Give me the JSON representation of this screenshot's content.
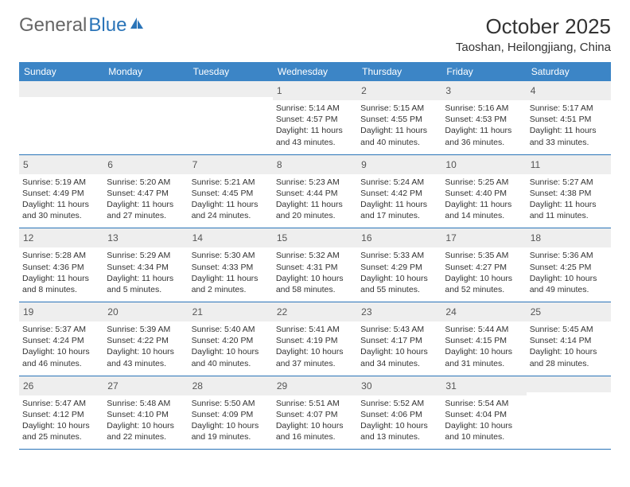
{
  "logo": {
    "part1": "General",
    "part2": "Blue"
  },
  "title": "October 2025",
  "location": "Taoshan, Heilongjiang, China",
  "colors": {
    "header_bg": "#3c85c6",
    "header_text": "#ffffff",
    "daynum_bg": "#eeeeee",
    "border": "#2a74b8",
    "logo_gray": "#666666",
    "logo_blue": "#2a74b8"
  },
  "day_names": [
    "Sunday",
    "Monday",
    "Tuesday",
    "Wednesday",
    "Thursday",
    "Friday",
    "Saturday"
  ],
  "weeks": [
    [
      null,
      null,
      null,
      {
        "n": "1",
        "sr": "Sunrise: 5:14 AM",
        "ss": "Sunset: 4:57 PM",
        "dl": "Daylight: 11 hours and 43 minutes."
      },
      {
        "n": "2",
        "sr": "Sunrise: 5:15 AM",
        "ss": "Sunset: 4:55 PM",
        "dl": "Daylight: 11 hours and 40 minutes."
      },
      {
        "n": "3",
        "sr": "Sunrise: 5:16 AM",
        "ss": "Sunset: 4:53 PM",
        "dl": "Daylight: 11 hours and 36 minutes."
      },
      {
        "n": "4",
        "sr": "Sunrise: 5:17 AM",
        "ss": "Sunset: 4:51 PM",
        "dl": "Daylight: 11 hours and 33 minutes."
      }
    ],
    [
      {
        "n": "5",
        "sr": "Sunrise: 5:19 AM",
        "ss": "Sunset: 4:49 PM",
        "dl": "Daylight: 11 hours and 30 minutes."
      },
      {
        "n": "6",
        "sr": "Sunrise: 5:20 AM",
        "ss": "Sunset: 4:47 PM",
        "dl": "Daylight: 11 hours and 27 minutes."
      },
      {
        "n": "7",
        "sr": "Sunrise: 5:21 AM",
        "ss": "Sunset: 4:45 PM",
        "dl": "Daylight: 11 hours and 24 minutes."
      },
      {
        "n": "8",
        "sr": "Sunrise: 5:23 AM",
        "ss": "Sunset: 4:44 PM",
        "dl": "Daylight: 11 hours and 20 minutes."
      },
      {
        "n": "9",
        "sr": "Sunrise: 5:24 AM",
        "ss": "Sunset: 4:42 PM",
        "dl": "Daylight: 11 hours and 17 minutes."
      },
      {
        "n": "10",
        "sr": "Sunrise: 5:25 AM",
        "ss": "Sunset: 4:40 PM",
        "dl": "Daylight: 11 hours and 14 minutes."
      },
      {
        "n": "11",
        "sr": "Sunrise: 5:27 AM",
        "ss": "Sunset: 4:38 PM",
        "dl": "Daylight: 11 hours and 11 minutes."
      }
    ],
    [
      {
        "n": "12",
        "sr": "Sunrise: 5:28 AM",
        "ss": "Sunset: 4:36 PM",
        "dl": "Daylight: 11 hours and 8 minutes."
      },
      {
        "n": "13",
        "sr": "Sunrise: 5:29 AM",
        "ss": "Sunset: 4:34 PM",
        "dl": "Daylight: 11 hours and 5 minutes."
      },
      {
        "n": "14",
        "sr": "Sunrise: 5:30 AM",
        "ss": "Sunset: 4:33 PM",
        "dl": "Daylight: 11 hours and 2 minutes."
      },
      {
        "n": "15",
        "sr": "Sunrise: 5:32 AM",
        "ss": "Sunset: 4:31 PM",
        "dl": "Daylight: 10 hours and 58 minutes."
      },
      {
        "n": "16",
        "sr": "Sunrise: 5:33 AM",
        "ss": "Sunset: 4:29 PM",
        "dl": "Daylight: 10 hours and 55 minutes."
      },
      {
        "n": "17",
        "sr": "Sunrise: 5:35 AM",
        "ss": "Sunset: 4:27 PM",
        "dl": "Daylight: 10 hours and 52 minutes."
      },
      {
        "n": "18",
        "sr": "Sunrise: 5:36 AM",
        "ss": "Sunset: 4:25 PM",
        "dl": "Daylight: 10 hours and 49 minutes."
      }
    ],
    [
      {
        "n": "19",
        "sr": "Sunrise: 5:37 AM",
        "ss": "Sunset: 4:24 PM",
        "dl": "Daylight: 10 hours and 46 minutes."
      },
      {
        "n": "20",
        "sr": "Sunrise: 5:39 AM",
        "ss": "Sunset: 4:22 PM",
        "dl": "Daylight: 10 hours and 43 minutes."
      },
      {
        "n": "21",
        "sr": "Sunrise: 5:40 AM",
        "ss": "Sunset: 4:20 PM",
        "dl": "Daylight: 10 hours and 40 minutes."
      },
      {
        "n": "22",
        "sr": "Sunrise: 5:41 AM",
        "ss": "Sunset: 4:19 PM",
        "dl": "Daylight: 10 hours and 37 minutes."
      },
      {
        "n": "23",
        "sr": "Sunrise: 5:43 AM",
        "ss": "Sunset: 4:17 PM",
        "dl": "Daylight: 10 hours and 34 minutes."
      },
      {
        "n": "24",
        "sr": "Sunrise: 5:44 AM",
        "ss": "Sunset: 4:15 PM",
        "dl": "Daylight: 10 hours and 31 minutes."
      },
      {
        "n": "25",
        "sr": "Sunrise: 5:45 AM",
        "ss": "Sunset: 4:14 PM",
        "dl": "Daylight: 10 hours and 28 minutes."
      }
    ],
    [
      {
        "n": "26",
        "sr": "Sunrise: 5:47 AM",
        "ss": "Sunset: 4:12 PM",
        "dl": "Daylight: 10 hours and 25 minutes."
      },
      {
        "n": "27",
        "sr": "Sunrise: 5:48 AM",
        "ss": "Sunset: 4:10 PM",
        "dl": "Daylight: 10 hours and 22 minutes."
      },
      {
        "n": "28",
        "sr": "Sunrise: 5:50 AM",
        "ss": "Sunset: 4:09 PM",
        "dl": "Daylight: 10 hours and 19 minutes."
      },
      {
        "n": "29",
        "sr": "Sunrise: 5:51 AM",
        "ss": "Sunset: 4:07 PM",
        "dl": "Daylight: 10 hours and 16 minutes."
      },
      {
        "n": "30",
        "sr": "Sunrise: 5:52 AM",
        "ss": "Sunset: 4:06 PM",
        "dl": "Daylight: 10 hours and 13 minutes."
      },
      {
        "n": "31",
        "sr": "Sunrise: 5:54 AM",
        "ss": "Sunset: 4:04 PM",
        "dl": "Daylight: 10 hours and 10 minutes."
      },
      null
    ]
  ]
}
